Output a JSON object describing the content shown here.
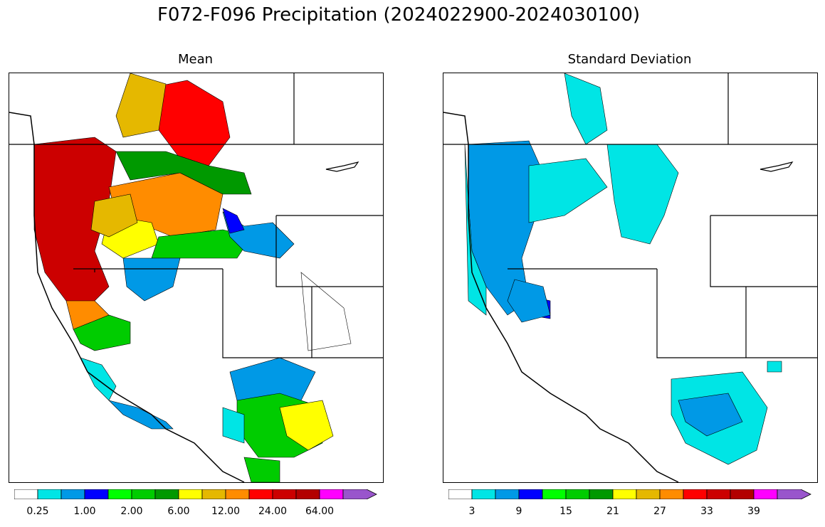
{
  "title": "F072-F096 Precipitation (2024022900-2024030100)",
  "panels": [
    {
      "title": "Mean",
      "colorbar": {
        "colors": [
          "#ffffff",
          "#00e5e5",
          "#0099e6",
          "#0000ff",
          "#00ff00",
          "#00cc00",
          "#009900",
          "#ffff00",
          "#e5b800",
          "#ff8c00",
          "#ff0000",
          "#cc0000",
          "#b30000",
          "#ff00ff",
          "#9955cc"
        ],
        "ticks": [
          "0.25",
          "1.00",
          "2.00",
          "6.00",
          "12.00",
          "24.00",
          "64.00"
        ]
      }
    },
    {
      "title": "Standard Deviation",
      "colorbar": {
        "colors": [
          "#ffffff",
          "#00e5e5",
          "#0099e6",
          "#0000ff",
          "#00ff00",
          "#00cc00",
          "#009900",
          "#ffff00",
          "#e5b800",
          "#ff8c00",
          "#ff0000",
          "#cc0000",
          "#b30000",
          "#ff00ff",
          "#9955cc"
        ],
        "ticks": [
          "3",
          "9",
          "15",
          "21",
          "27",
          "33",
          "39"
        ]
      }
    }
  ]
}
